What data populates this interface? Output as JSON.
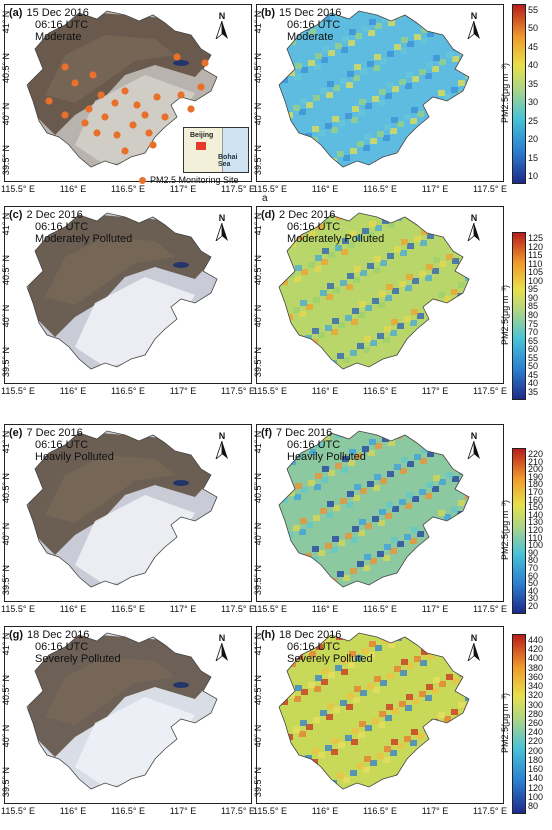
{
  "panels": [
    {
      "id": "a",
      "letter": "(a)",
      "date": "15 Dec 2016",
      "time": "06:16 UTC",
      "level": "Moderate",
      "kind": "rgb"
    },
    {
      "id": "b",
      "letter": "(b)",
      "date": "15 Dec 2016",
      "time": "06:16 UTC",
      "level": "Moderate",
      "kind": "pm"
    },
    {
      "id": "c",
      "letter": "(c)",
      "date": "2 Dec 2016",
      "time": "06:16 UTC",
      "level": "Moderately Polluted",
      "kind": "rgb"
    },
    {
      "id": "d",
      "letter": "(d)",
      "date": "2 Dec 2016",
      "time": "06:16 UTC",
      "level": "Moderately Polluted",
      "kind": "pm"
    },
    {
      "id": "e",
      "letter": "(e)",
      "date": "7 Dec 2016",
      "time": "06:16 UTC",
      "level": "Heavily Polluted",
      "kind": "rgb"
    },
    {
      "id": "f",
      "letter": "(f)",
      "date": "7 Dec 2016",
      "time": "06:16 UTC",
      "level": "Heavily Polluted",
      "kind": "pm"
    },
    {
      "id": "g",
      "letter": "(g)",
      "date": "18 Dec 2016",
      "time": "06:16 UTC",
      "level": "Severely Polluted",
      "kind": "rgb"
    },
    {
      "id": "h",
      "letter": "(h)",
      "date": "18 Dec 2016",
      "time": "06:16 UTC",
      "level": "Severely Polluted",
      "kind": "pm"
    }
  ],
  "north_label": "N",
  "x_ticks": [
    "115.5° E",
    "116° E",
    "116.5° E",
    "117° E",
    "117.5° E"
  ],
  "y_ticks": [
    "41° N",
    "40.5° N",
    "40° N",
    "39.5° N"
  ],
  "colorbar_label": "PM2.5(μg m⁻³)",
  "colorbars": [
    {
      "ticks": [
        "55",
        "50",
        "45",
        "40",
        "35",
        "30",
        "25",
        "20",
        "15",
        "10"
      ]
    },
    {
      "ticks": [
        "125",
        "120",
        "115",
        "110",
        "105",
        "100",
        "95",
        "90",
        "85",
        "80",
        "75",
        "70",
        "65",
        "60",
        "55",
        "50",
        "45",
        "40",
        "35"
      ]
    },
    {
      "ticks": [
        "220",
        "210",
        "200",
        "190",
        "180",
        "170",
        "160",
        "150",
        "140",
        "130",
        "120",
        "110",
        "100",
        "90",
        "80",
        "70",
        "60",
        "50",
        "40",
        "30",
        "20"
      ]
    },
    {
      "ticks": [
        "440",
        "420",
        "400",
        "380",
        "360",
        "340",
        "320",
        "300",
        "280",
        "260",
        "240",
        "220",
        "200",
        "180",
        "160",
        "140",
        "120",
        "100",
        "80"
      ]
    }
  ],
  "inset": {
    "city": "Beijing",
    "sea": "Bohai Sea"
  },
  "legend": {
    "label": "PM2.5 Monitoring Site"
  },
  "stray_label": "a",
  "colors": {
    "site_marker": "#e8702a",
    "border": "#222222"
  }
}
